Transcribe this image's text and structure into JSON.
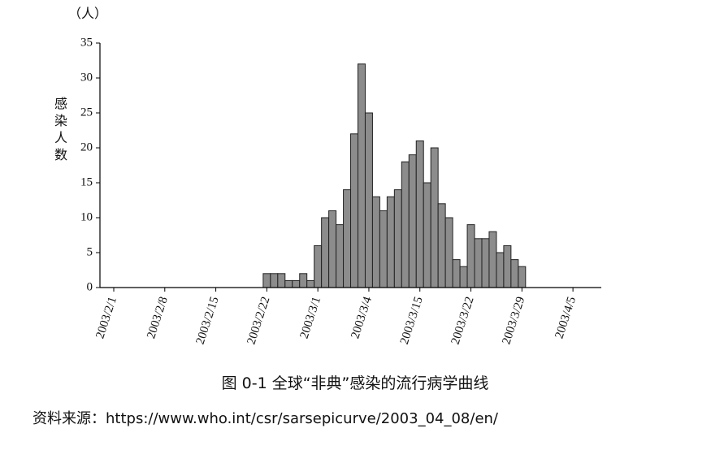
{
  "chart_data": {
    "type": "bar",
    "y_unit": "（人）",
    "y_label": "感染人数",
    "title": "图 0-1 全球“非典”感染的流行病学曲线",
    "source": "资料来源：https://www.who.int/csr/sarsepicurve/2003_04_08/en/",
    "categories": [
      "2003/2/1",
      null,
      null,
      null,
      null,
      null,
      null,
      "2003/2/8",
      null,
      null,
      null,
      null,
      null,
      null,
      "2003/2/15",
      null,
      null,
      null,
      null,
      null,
      null,
      "2003/2/22",
      null,
      null,
      null,
      null,
      null,
      null,
      "2003/3/1",
      null,
      null,
      null,
      null,
      null,
      null,
      "2003/3/4",
      null,
      null,
      null,
      null,
      null,
      null,
      "2003/3/15",
      null,
      null,
      null,
      null,
      null,
      null,
      "2003/3/22",
      null,
      null,
      null,
      null,
      null,
      null,
      "2003/3/29",
      null,
      null,
      null,
      null,
      null,
      null,
      "2003/4/5",
      null
    ],
    "values": [
      null,
      null,
      null,
      null,
      null,
      null,
      null,
      null,
      null,
      null,
      null,
      null,
      null,
      null,
      null,
      null,
      null,
      null,
      null,
      null,
      null,
      2,
      2,
      2,
      1,
      1,
      2,
      1,
      6,
      10,
      11,
      9,
      14,
      22,
      32,
      25,
      13,
      11,
      13,
      14,
      18,
      19,
      21,
      15,
      20,
      12,
      10,
      4,
      3,
      9,
      7,
      7,
      8,
      5,
      6,
      4,
      3,
      null,
      null,
      null,
      null,
      null,
      null,
      null,
      null
    ],
    "color": "#8c8c8c",
    "ylim": [
      0,
      35
    ],
    "yticks": [
      0,
      5,
      10,
      15,
      20,
      25,
      30,
      35
    ],
    "grid": false
  }
}
